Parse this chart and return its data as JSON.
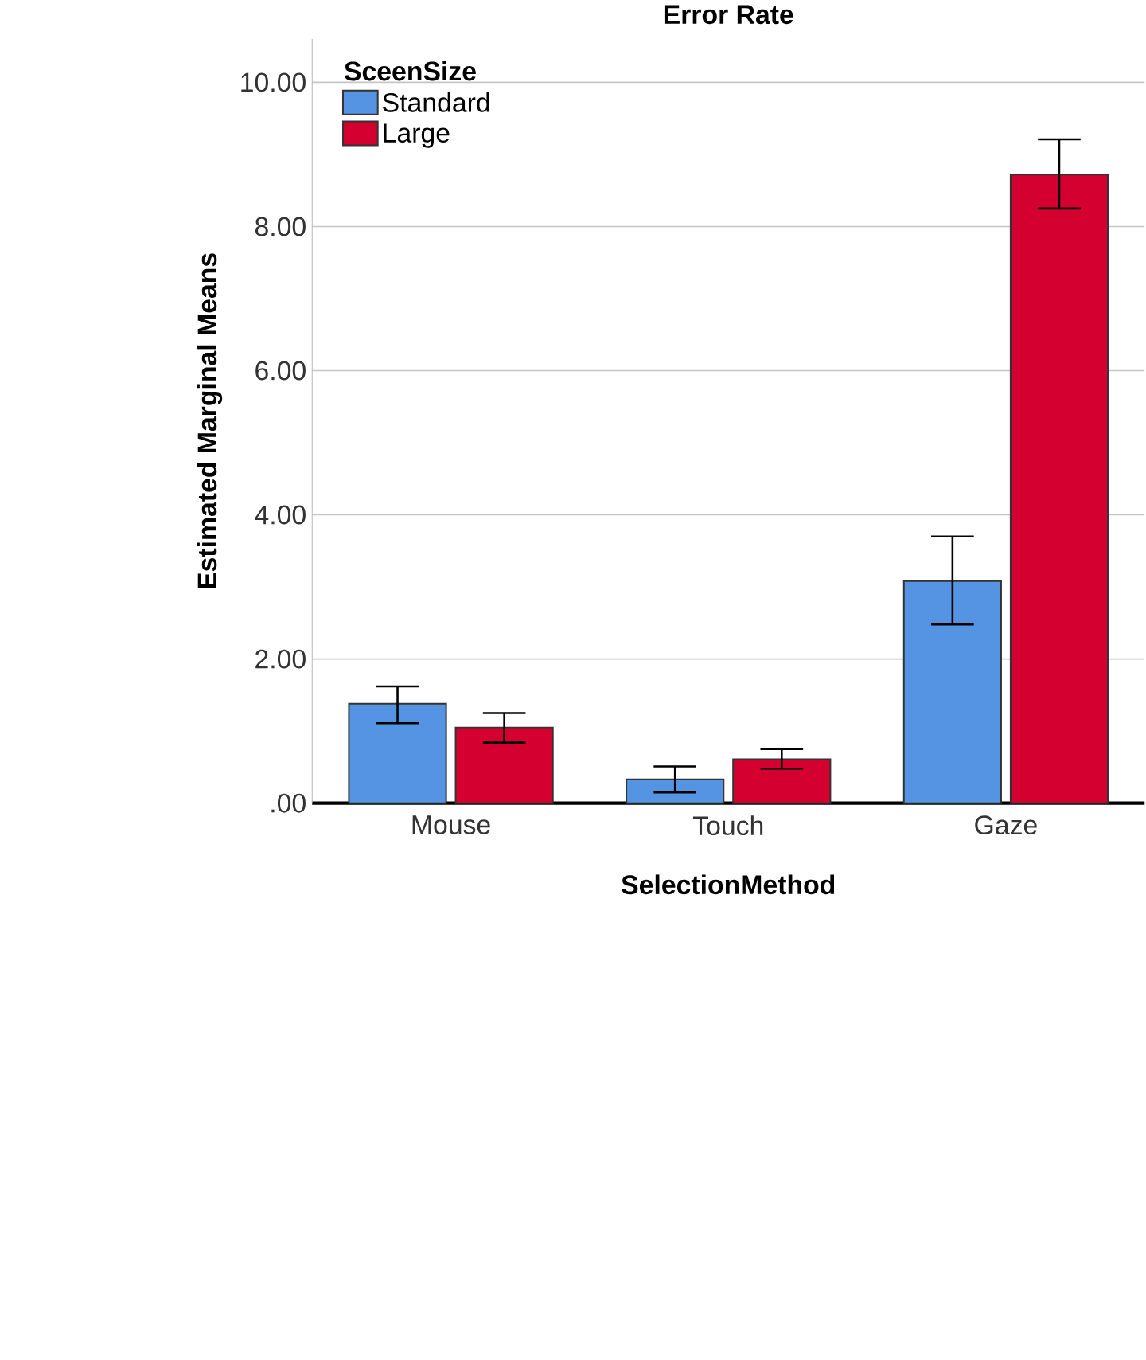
{
  "chart_data": {
    "type": "bar",
    "title": "Error Rate",
    "xlabel": "SelectionMethod",
    "ylabel": "Estimated Marginal Means",
    "legend_title": "SceenSize",
    "categories": [
      "Mouse",
      "Touch",
      "Gaze"
    ],
    "series": [
      {
        "name": "Standard",
        "color": "#5594e2",
        "values": [
          1.38,
          0.33,
          3.08
        ],
        "errors": [
          [
            1.11,
            1.62
          ],
          [
            0.15,
            0.51
          ],
          [
            2.48,
            3.7
          ]
        ]
      },
      {
        "name": "Large",
        "color": "#d40030",
        "values": [
          1.05,
          0.61,
          8.72
        ],
        "errors": [
          [
            0.84,
            1.25
          ],
          [
            0.48,
            0.75
          ],
          [
            8.25,
            9.21
          ]
        ]
      }
    ],
    "ylim": [
      0,
      10.6
    ],
    "yticks": [
      {
        "value": 0,
        "label": ".00"
      },
      {
        "value": 2,
        "label": "2.00"
      },
      {
        "value": 4,
        "label": "4.00"
      },
      {
        "value": 6,
        "label": "6.00"
      },
      {
        "value": 8,
        "label": "8.00"
      },
      {
        "value": 10,
        "label": "10.00"
      }
    ],
    "grid": "y",
    "legend": "top left"
  }
}
